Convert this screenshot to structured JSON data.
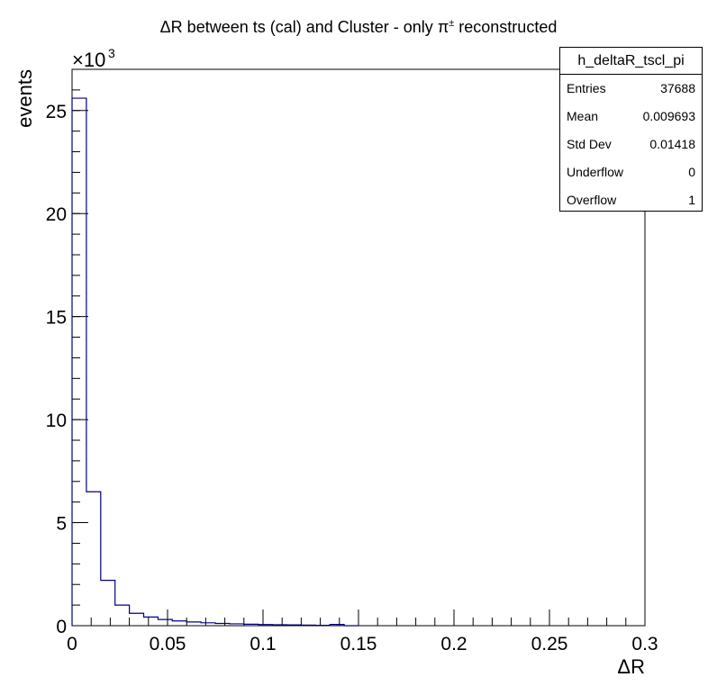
{
  "chart_data": {
    "type": "bar",
    "title_parts": [
      "ΔR between ts (cal) and Cluster - only ",
      "π",
      "±",
      " reconstructed"
    ],
    "xlabel": "ΔR",
    "ylabel": "events",
    "y_multiplier_label": "×10",
    "y_multiplier_exp": "3",
    "xlim": [
      0,
      0.3
    ],
    "ylim": [
      0,
      27000
    ],
    "x_ticks": [
      "0",
      "0.05",
      "0.1",
      "0.15",
      "0.2",
      "0.25",
      "0.3"
    ],
    "y_ticks": [
      "0",
      "5",
      "10",
      "15",
      "20",
      "25"
    ],
    "bin_width": 0.0075,
    "bins_x_start": [
      0,
      0.0075,
      0.015,
      0.0225,
      0.03,
      0.0375,
      0.045,
      0.0525,
      0.06,
      0.0675,
      0.075,
      0.0825,
      0.09,
      0.0975,
      0.105,
      0.1125,
      0.12,
      0.1275,
      0.135,
      0.1425
    ],
    "values": [
      25600,
      6500,
      2200,
      1000,
      600,
      420,
      300,
      230,
      180,
      140,
      110,
      90,
      70,
      55,
      45,
      40,
      30,
      20,
      60,
      0
    ],
    "line_color": "#00007f"
  },
  "stats": {
    "name": "h_deltaR_tscl_pi",
    "rows": [
      {
        "label": "Entries",
        "value": "37688"
      },
      {
        "label": "Mean",
        "value": "0.009693"
      },
      {
        "label": "Std Dev",
        "value": "0.01418"
      },
      {
        "label": "Underflow",
        "value": "0"
      },
      {
        "label": "Overflow",
        "value": "1"
      }
    ]
  }
}
